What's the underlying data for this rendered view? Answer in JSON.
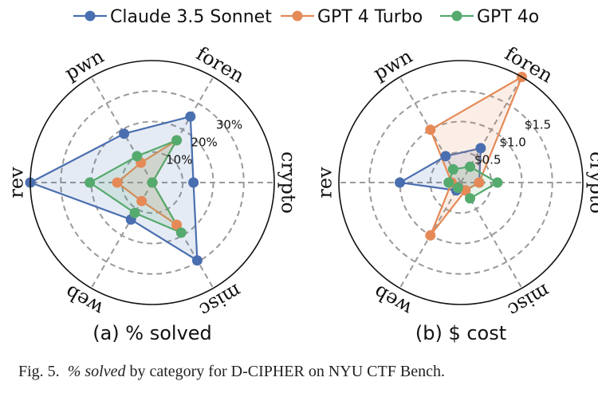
{
  "legend": {
    "items": [
      {
        "label": "Claude 3.5 Sonnet",
        "color": "#4A6FB0"
      },
      {
        "label": "GPT 4 Turbo",
        "color": "#E58A57"
      },
      {
        "label": "GPT 4o",
        "color": "#55AA6E"
      }
    ]
  },
  "caption": {
    "fig_label": "Fig. 5.",
    "italic_part": "% solved",
    "rest": " by category for D-CIPHER on NYU CTF Bench."
  },
  "chart_data": [
    {
      "type": "radar",
      "title": "(a) % solved",
      "categories": [
        "crypto",
        "foren",
        "pwn",
        "rev",
        "web",
        "misc"
      ],
      "rticks": [
        "10%",
        "20%",
        "30%"
      ],
      "rtick_values": [
        10,
        20,
        30
      ],
      "rlim": [
        0,
        40
      ],
      "grid": true,
      "series": [
        {
          "name": "Claude 3.5 Sonnet",
          "color": "#4A6FB0",
          "values": [
            13.5,
            25,
            18.5,
            40,
            14,
            29.5
          ]
        },
        {
          "name": "GPT 4 Turbo",
          "color": "#E58A57",
          "values": [
            0,
            16,
            7.5,
            11.5,
            7,
            16
          ]
        },
        {
          "name": "GPT 4o",
          "color": "#55AA6E",
          "values": [
            0,
            16,
            10,
            20.5,
            11.5,
            19
          ]
        }
      ]
    },
    {
      "type": "radar",
      "title": "(b) $ cost",
      "categories": [
        "crypto",
        "foren",
        "pwn",
        "rev",
        "web",
        "misc"
      ],
      "rticks": [
        "$0.5",
        "$1.0",
        "$1.5"
      ],
      "rtick_values": [
        0.5,
        1.0,
        1.5
      ],
      "rlim": [
        0,
        2.0
      ],
      "grid": true,
      "series": [
        {
          "name": "Claude 3.5 Sonnet",
          "color": "#4A6FB0",
          "values": [
            0.3,
            0.65,
            0.5,
            1.0,
            0.15,
            0.15
          ]
        },
        {
          "name": "GPT 4 Turbo",
          "color": "#E58A57",
          "values": [
            0.3,
            2.0,
            1.0,
            0.15,
            1.0,
            0.15
          ]
        },
        {
          "name": "GPT 4o",
          "color": "#55AA6E",
          "values": [
            0.6,
            0.3,
            0.25,
            0.2,
            0.1,
            0.3
          ]
        }
      ]
    }
  ]
}
